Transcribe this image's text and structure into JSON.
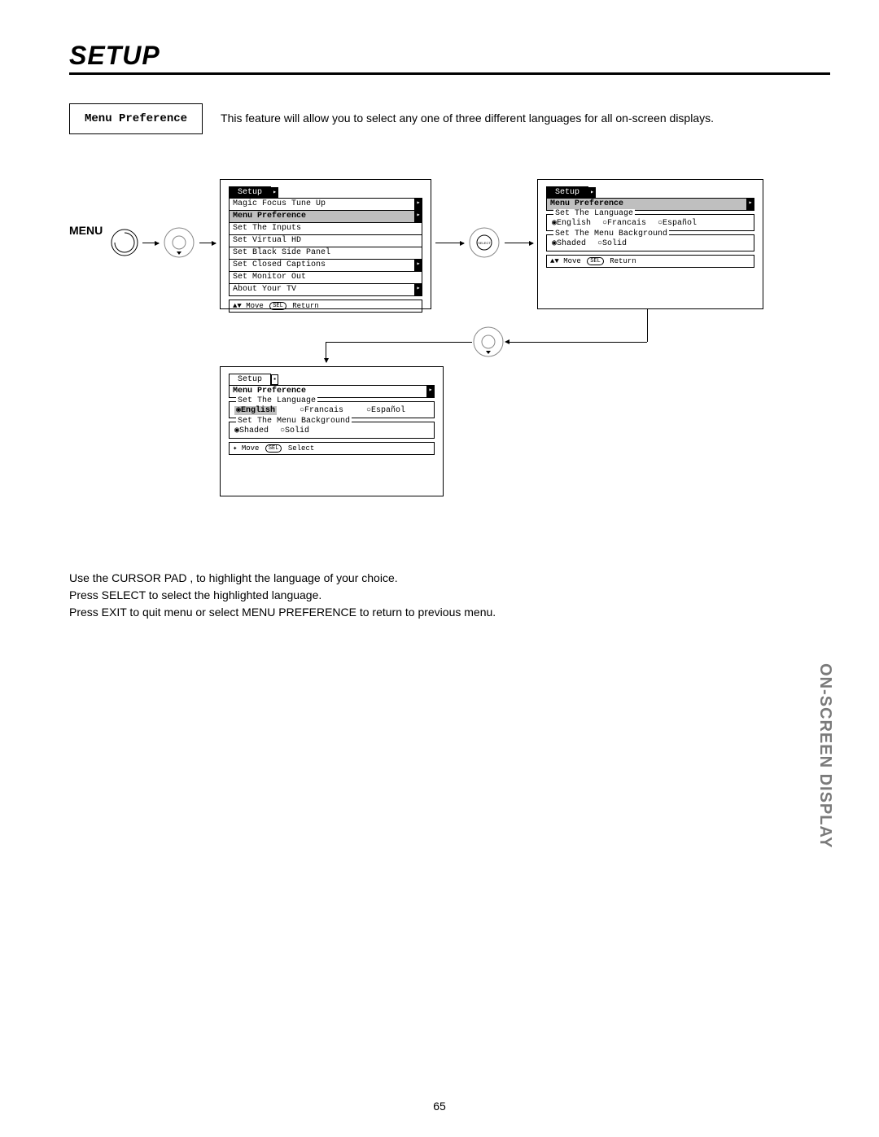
{
  "title": "SETUP",
  "header_label": "Menu Preference",
  "header_desc": "This feature will allow you to select any one of three different languages for all on-screen displays.",
  "menu_label": "MENU",
  "osd1": {
    "tab": "Setup",
    "rows": [
      {
        "label": "Magic Focus Tune Up",
        "hl": false,
        "arrow": true
      },
      {
        "label": "Menu Preference",
        "hl": true,
        "arrow": true
      },
      {
        "label": "Set The Inputs",
        "hl": false,
        "arrow": false
      },
      {
        "label": "Set Virtual HD",
        "hl": false,
        "arrow": false
      },
      {
        "label": "Set Black Side Panel",
        "hl": false,
        "arrow": false
      },
      {
        "label": "Set Closed Captions",
        "hl": false,
        "arrow": true
      },
      {
        "label": "Set Monitor Out",
        "hl": false,
        "arrow": false
      },
      {
        "label": "About Your TV",
        "hl": false,
        "arrow": true
      }
    ],
    "hint_move": "Move",
    "hint_return": "Return"
  },
  "osd2": {
    "tab": "Setup",
    "menu_pref": "Menu Preference",
    "lang_legend": "Set The Language",
    "lang_opts": [
      "◉English",
      "○Francais",
      "○Español"
    ],
    "bg_legend": "Set The Menu Background",
    "bg_opts": [
      "◉Shaded",
      "○Solid"
    ],
    "hint_move": "Move",
    "hint_return": "Return"
  },
  "osd3": {
    "tab": "Setup",
    "menu_pref": "Menu Preference",
    "lang_legend": "Set The Language",
    "lang_opts_bold": "◉English",
    "lang_opts_rest": [
      "○Francais",
      "○Español"
    ],
    "bg_legend": "Set The Menu Background",
    "bg_opts": [
      "◉Shaded",
      "○Solid"
    ],
    "hint_move": "Move",
    "hint_select": "Select"
  },
  "instructions": [
    "Use the CURSOR PAD     ,     to highlight the language of your choice.",
    "Press SELECT to select the highlighted language.",
    "Press EXIT to quit menu or select MENU PREFERENCE to return to previous menu."
  ],
  "side_tab": "ON-SCREEN DISPLAY",
  "page_num": "65"
}
